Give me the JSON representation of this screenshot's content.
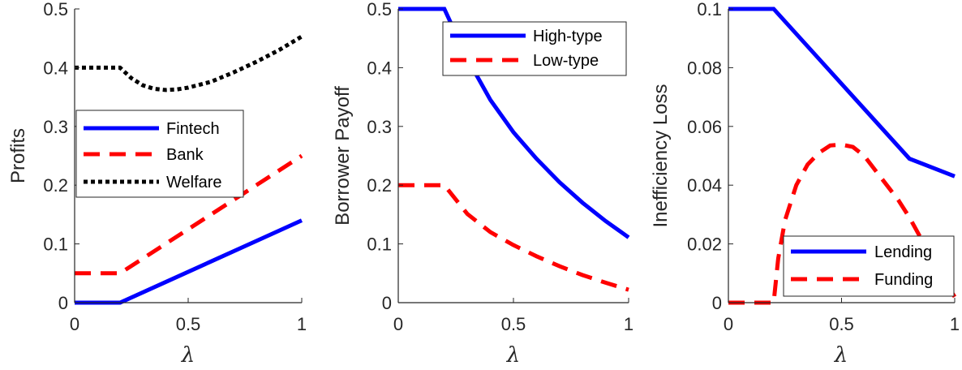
{
  "colors": {
    "blue": "#0000ff",
    "red": "#ff0000",
    "black": "#000000",
    "axis": "#262626"
  },
  "chart_data": [
    {
      "type": "line",
      "xlabel": "λ",
      "ylabel": "Profits",
      "xlim": [
        0,
        1
      ],
      "ylim": [
        0,
        0.5
      ],
      "xticks": [
        "0",
        "0.5",
        "1"
      ],
      "yticks": [
        "0",
        "0.1",
        "0.2",
        "0.3",
        "0.4",
        "0.5"
      ],
      "grid": false,
      "legend_position": "middle-left",
      "series": [
        {
          "name": "Fintech",
          "color": "#0000ff",
          "style": "solid",
          "x": [
            0,
            0.1,
            0.2,
            0.4,
            0.6,
            0.8,
            1.0
          ],
          "y": [
            0,
            0,
            0,
            0.035,
            0.07,
            0.105,
            0.14
          ]
        },
        {
          "name": "Bank",
          "color": "#ff0000",
          "style": "dashed",
          "x": [
            0,
            0.1,
            0.2,
            0.4,
            0.6,
            0.8,
            1.0
          ],
          "y": [
            0.05,
            0.05,
            0.05,
            0.1,
            0.15,
            0.2,
            0.25
          ]
        },
        {
          "name": "Welfare",
          "color": "#000000",
          "style": "dotted",
          "x": [
            0,
            0.1,
            0.2,
            0.25,
            0.3,
            0.35,
            0.4,
            0.45,
            0.5,
            0.6,
            0.7,
            0.8,
            0.9,
            1.0
          ],
          "y": [
            0.4,
            0.4,
            0.4,
            0.382,
            0.37,
            0.364,
            0.362,
            0.363,
            0.366,
            0.376,
            0.392,
            0.41,
            0.43,
            0.453
          ]
        }
      ]
    },
    {
      "type": "line",
      "xlabel": "λ",
      "ylabel": "Borrower Payoff",
      "xlim": [
        0,
        1
      ],
      "ylim": [
        0,
        0.5
      ],
      "xticks": [
        "0",
        "0.5",
        "1"
      ],
      "yticks": [
        "0",
        "0.1",
        "0.2",
        "0.3",
        "0.4",
        "0.5"
      ],
      "grid": false,
      "legend_position": "top-right",
      "series": [
        {
          "name": "High-type",
          "color": "#0000ff",
          "style": "solid",
          "x": [
            0,
            0.1,
            0.2,
            0.3,
            0.4,
            0.5,
            0.6,
            0.7,
            0.8,
            0.9,
            1.0
          ],
          "y": [
            0.5,
            0.5,
            0.5,
            0.415,
            0.345,
            0.29,
            0.245,
            0.205,
            0.17,
            0.139,
            0.111
          ]
        },
        {
          "name": "Low-type",
          "color": "#ff0000",
          "style": "dashed",
          "x": [
            0,
            0.1,
            0.2,
            0.3,
            0.4,
            0.5,
            0.6,
            0.7,
            0.8,
            0.9,
            1.0
          ],
          "y": [
            0.2,
            0.2,
            0.2,
            0.151,
            0.12,
            0.098,
            0.079,
            0.062,
            0.047,
            0.034,
            0.022
          ]
        }
      ]
    },
    {
      "type": "line",
      "xlabel": "λ",
      "ylabel": "Inefficiency Loss",
      "xlim": [
        0,
        1
      ],
      "ylim": [
        0,
        0.1
      ],
      "xticks": [
        "0",
        "0.5",
        "1"
      ],
      "yticks": [
        "0",
        "0.02",
        "0.04",
        "0.06",
        "0.08",
        "0.1"
      ],
      "grid": false,
      "legend_position": "bottom-right",
      "series": [
        {
          "name": "Lending",
          "color": "#0000ff",
          "style": "solid",
          "x": [
            0,
            0.1,
            0.2,
            0.4,
            0.6,
            0.8,
            1.0
          ],
          "y": [
            0.1,
            0.1,
            0.1,
            0.083,
            0.066,
            0.049,
            0.043
          ]
        },
        {
          "name": "Funding",
          "color": "#ff0000",
          "style": "dashed",
          "x": [
            0,
            0.1,
            0.2,
            0.22,
            0.25,
            0.3,
            0.35,
            0.4,
            0.45,
            0.5,
            0.55,
            0.6,
            0.65,
            0.7,
            0.75,
            0.8,
            0.85,
            0.9,
            0.95,
            1.0
          ],
          "y": [
            0,
            0,
            0,
            0.015,
            0.028,
            0.04,
            0.047,
            0.051,
            0.0535,
            0.0538,
            0.053,
            0.05,
            0.045,
            0.04,
            0.035,
            0.029,
            0.022,
            0.015,
            0.008,
            0.002
          ]
        }
      ]
    }
  ]
}
